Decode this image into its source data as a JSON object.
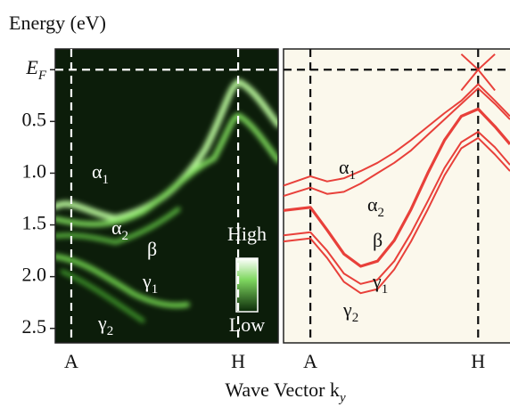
{
  "chart_data": [
    {
      "type": "image",
      "ylabel": "Energy (eV)",
      "xlabel": "Wave Vector ky",
      "ylim": [
        2.64,
        -0.2
      ],
      "yticks": [
        {
          "value": 0,
          "label": "EF"
        },
        0.5,
        {
          "value": 1,
          "label": "1.0"
        },
        1.5,
        {
          "value": 2,
          "label": "2.0"
        },
        2.5
      ],
      "xlim": [
        -0.096,
        1.24
      ],
      "xticks": [
        {
          "value": 0,
          "label": "A"
        },
        {
          "value": 1,
          "label": "H"
        }
      ],
      "annotations": [
        "α1",
        "α2",
        "β",
        "γ1",
        "γ2"
      ],
      "colorbar_labels": [
        "High",
        "Low"
      ]
    },
    {
      "type": "line",
      "ylim": [
        2.64,
        -0.2
      ],
      "xlim": [
        -0.16,
        1.19
      ],
      "xticks": [
        {
          "value": 0,
          "label": "A"
        },
        {
          "value": 1,
          "label": "H"
        }
      ],
      "x": [
        -0.16,
        0,
        0.1,
        0.2,
        0.3,
        0.4,
        0.5,
        0.6,
        0.7,
        0.8,
        0.9,
        1.0,
        1.1,
        1.19
      ],
      "color": "#e8403a",
      "annotations": [
        "α1",
        "α2",
        "β",
        "γ1",
        "γ2"
      ],
      "series": [
        {
          "values": [
            1.12,
            1.03,
            1.08,
            1.05,
            0.98,
            0.9,
            0.8,
            0.68,
            0.55,
            0.42,
            0.3,
            0.14,
            0.3,
            0.45
          ]
        },
        {
          "values": [
            1.22,
            1.14,
            1.2,
            1.18,
            1.1,
            1.0,
            0.9,
            0.78,
            0.63,
            0.48,
            0.33,
            0.18,
            0.33,
            0.48
          ]
        },
        {
          "values": [
            1.36,
            1.33,
            1.55,
            1.78,
            1.9,
            1.85,
            1.65,
            1.35,
            1.0,
            0.68,
            0.45,
            0.38,
            0.55,
            0.72
          ]
        },
        {
          "values": [
            1.6,
            1.57,
            1.75,
            1.97,
            2.07,
            2.03,
            1.85,
            1.58,
            1.27,
            0.95,
            0.7,
            0.6,
            0.75,
            0.92
          ]
        },
        {
          "values": [
            1.66,
            1.63,
            1.82,
            2.05,
            2.16,
            2.12,
            1.93,
            1.66,
            1.35,
            1.02,
            0.76,
            0.66,
            0.82,
            0.98
          ]
        },
        {
          "values": [
            null,
            null,
            null,
            null,
            null,
            null,
            null,
            null,
            null,
            null,
            0.2,
            0,
            -0.15,
            null
          ]
        },
        {
          "values": [
            null,
            null,
            null,
            null,
            null,
            null,
            null,
            null,
            null,
            null,
            -0.15,
            0,
            0.2,
            null
          ]
        }
      ]
    }
  ]
}
